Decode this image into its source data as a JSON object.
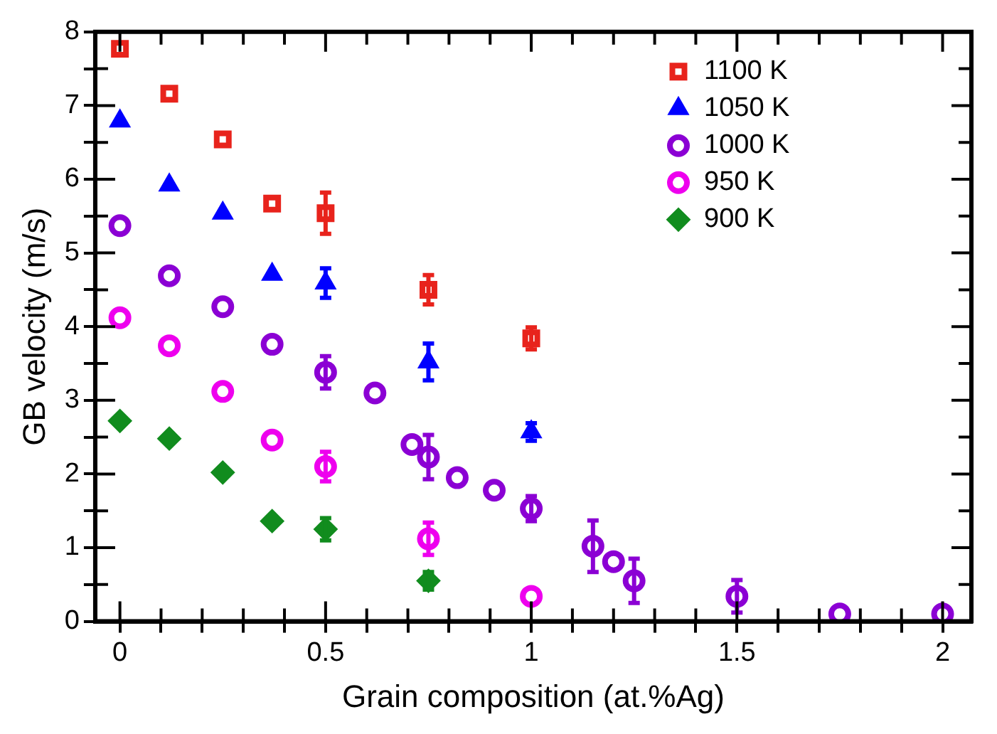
{
  "chart_data": {
    "type": "scatter",
    "xlabel": "Grain composition (at.%Ag)",
    "ylabel": "GB velocity (m/s)",
    "xlim": [
      -0.06,
      2.07
    ],
    "ylim": [
      0,
      8
    ],
    "xticks": [
      0,
      {
        "value": 0.1,
        "label": null
      },
      {
        "value": 0.2,
        "label": null
      },
      {
        "value": 0.3,
        "label": null
      },
      {
        "value": 0.4,
        "label": null
      },
      0.5,
      {
        "value": 0.6,
        "label": null
      },
      {
        "value": 0.7,
        "label": null
      },
      {
        "value": 0.8,
        "label": null
      },
      {
        "value": 0.9,
        "label": null
      },
      1,
      {
        "value": 1.1,
        "label": null
      },
      {
        "value": 1.2,
        "label": null
      },
      {
        "value": 1.3,
        "label": null
      },
      {
        "value": 1.4,
        "label": null
      },
      1.5,
      {
        "value": 1.6,
        "label": null
      },
      {
        "value": 1.7,
        "label": null
      },
      {
        "value": 1.8,
        "label": null
      },
      {
        "value": 1.9,
        "label": null
      },
      2
    ],
    "yticks": [
      0,
      {
        "value": 0.5,
        "label": null
      },
      1,
      {
        "value": 1.5,
        "label": null
      },
      2,
      {
        "value": 2.5,
        "label": null
      },
      3,
      {
        "value": 3.5,
        "label": null
      },
      4,
      {
        "value": 4.5,
        "label": null
      },
      5,
      {
        "value": 5.5,
        "label": null
      },
      6,
      {
        "value": 6.5,
        "label": null
      },
      7,
      {
        "value": 7.5,
        "label": null
      },
      8
    ],
    "grid": false,
    "legend": "top right",
    "series": [
      {
        "name": "1100 K",
        "color": "#e8231c",
        "marker": "square",
        "x": [
          0,
          0.12,
          0.25,
          0.37,
          0.5,
          0.75,
          1.0
        ],
        "values": [
          7.77,
          7.16,
          6.54,
          5.67,
          5.54,
          4.5,
          3.84
        ],
        "errors": [
          null,
          null,
          null,
          null,
          0.28,
          0.2,
          0.15
        ]
      },
      {
        "name": "1050 K",
        "color": "#0000ff",
        "marker": "triangle",
        "x": [
          0,
          0.12,
          0.25,
          0.37,
          0.5,
          0.75,
          1.0
        ],
        "values": [
          6.79,
          5.92,
          5.54,
          4.71,
          4.59,
          3.52,
          2.57
        ],
        "errors": [
          null,
          null,
          null,
          null,
          0.2,
          0.25,
          0.12
        ]
      },
      {
        "name": "1000 K",
        "color": "#8b00d4",
        "marker": "circle",
        "x": [
          0,
          0.12,
          0.25,
          0.37,
          0.5,
          0.62,
          0.71,
          0.75,
          0.82,
          0.91,
          1.0,
          1.15,
          1.2,
          1.25,
          1.5,
          1.75,
          2.0
        ],
        "values": [
          5.37,
          4.69,
          4.27,
          3.76,
          3.38,
          3.1,
          2.4,
          2.23,
          1.95,
          1.78,
          1.53,
          1.02,
          0.81,
          0.55,
          0.34,
          0.1,
          0.1
        ],
        "errors": [
          null,
          null,
          null,
          null,
          0.22,
          null,
          null,
          0.3,
          null,
          null,
          0.17,
          0.35,
          null,
          0.3,
          0.22,
          null,
          null
        ]
      },
      {
        "name": "950 K",
        "color": "#ee00ee",
        "marker": "circle",
        "x": [
          0,
          0.12,
          0.25,
          0.37,
          0.5,
          0.75,
          1.0
        ],
        "values": [
          4.12,
          3.74,
          3.12,
          2.46,
          2.1,
          1.12,
          0.34
        ],
        "errors": [
          null,
          null,
          null,
          null,
          0.2,
          0.22,
          null
        ]
      },
      {
        "name": "900 K",
        "color": "#118c1e",
        "marker": "diamond",
        "x": [
          0,
          0.12,
          0.25,
          0.37,
          0.5,
          0.75
        ],
        "values": [
          2.72,
          2.48,
          2.02,
          1.36,
          1.25,
          0.55
        ],
        "errors": [
          null,
          null,
          null,
          null,
          0.15,
          0.12
        ]
      }
    ]
  }
}
